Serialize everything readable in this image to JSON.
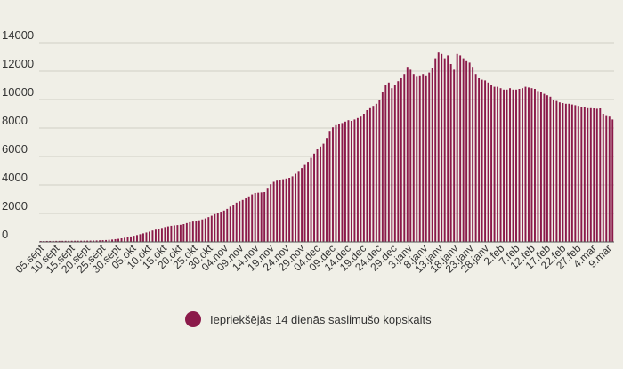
{
  "chart_data": {
    "type": "bar",
    "color": "#8b1a4a",
    "background": "#f0efe7",
    "grid": true,
    "legend_position": "bottom-center",
    "ylim": [
      0,
      14000
    ],
    "yticks": [
      0,
      2000,
      4000,
      6000,
      8000,
      10000,
      12000,
      14000
    ],
    "x_tick_labels": [
      "05.sept",
      "10.sept",
      "15.sept",
      "20.sept",
      "25.sept",
      "30.sept",
      "05.okt",
      "10.okt",
      "15.okt",
      "20.okt",
      "25.okt",
      "30.okt",
      "04.nov",
      "09.nov",
      "14.nov",
      "19.nov",
      "24.nov",
      "29.nov",
      "04.dec",
      "09.dec",
      "14.dec",
      "19.dec",
      "24.dec",
      "29.dec",
      "3.janv",
      "8.janv",
      "13.janv",
      "18.janv",
      "23.janv",
      "28.janv",
      "2.feb",
      "7.feb",
      "12.feb",
      "17.feb",
      "22.feb",
      "27.feb",
      "4.mar",
      "9.mar"
    ],
    "series": [
      {
        "name": "Iepriekšējās 14 dienās saslimušo kopskaits",
        "values": [
          60,
          62,
          65,
          65,
          68,
          70,
          70,
          72,
          75,
          75,
          78,
          80,
          80,
          82,
          85,
          88,
          90,
          95,
          100,
          110,
          120,
          130,
          145,
          165,
          190,
          215,
          250,
          290,
          330,
          380,
          430,
          480,
          540,
          600,
          660,
          720,
          800,
          860,
          920,
          980,
          1040,
          1090,
          1130,
          1160,
          1180,
          1200,
          1250,
          1320,
          1380,
          1430,
          1480,
          1520,
          1580,
          1650,
          1740,
          1840,
          1950,
          2040,
          2120,
          2200,
          2320,
          2480,
          2620,
          2760,
          2860,
          2950,
          3060,
          3200,
          3340,
          3440,
          3460,
          3480,
          3500,
          3800,
          4050,
          4220,
          4300,
          4350,
          4400,
          4450,
          4500,
          4600,
          4780,
          4980,
          5180,
          5400,
          5620,
          5900,
          6200,
          6500,
          6700,
          6900,
          7300,
          7800,
          8050,
          8200,
          8250,
          8350,
          8450,
          8550,
          8500,
          8600,
          8700,
          8800,
          9000,
          9250,
          9450,
          9550,
          9700,
          10000,
          10500,
          11000,
          11200,
          10800,
          11000,
          11300,
          11500,
          11800,
          12300,
          12100,
          11800,
          11600,
          11700,
          11800,
          11700,
          11900,
          12200,
          12900,
          13300,
          13200,
          12900,
          13100,
          12500,
          12100,
          13200,
          13100,
          12900,
          12700,
          12600,
          12300,
          11800,
          11500,
          11400,
          11350,
          11200,
          11000,
          10900,
          10900,
          10800,
          10700,
          10700,
          10800,
          10700,
          10700,
          10750,
          10800,
          10900,
          10850,
          10800,
          10750,
          10600,
          10500,
          10400,
          10300,
          10200,
          10000,
          9900,
          9800,
          9750,
          9700,
          9700,
          9650,
          9600,
          9550,
          9500,
          9500,
          9450,
          9450,
          9400,
          9350,
          9400,
          9000,
          8900,
          8800,
          8600
        ]
      }
    ]
  }
}
